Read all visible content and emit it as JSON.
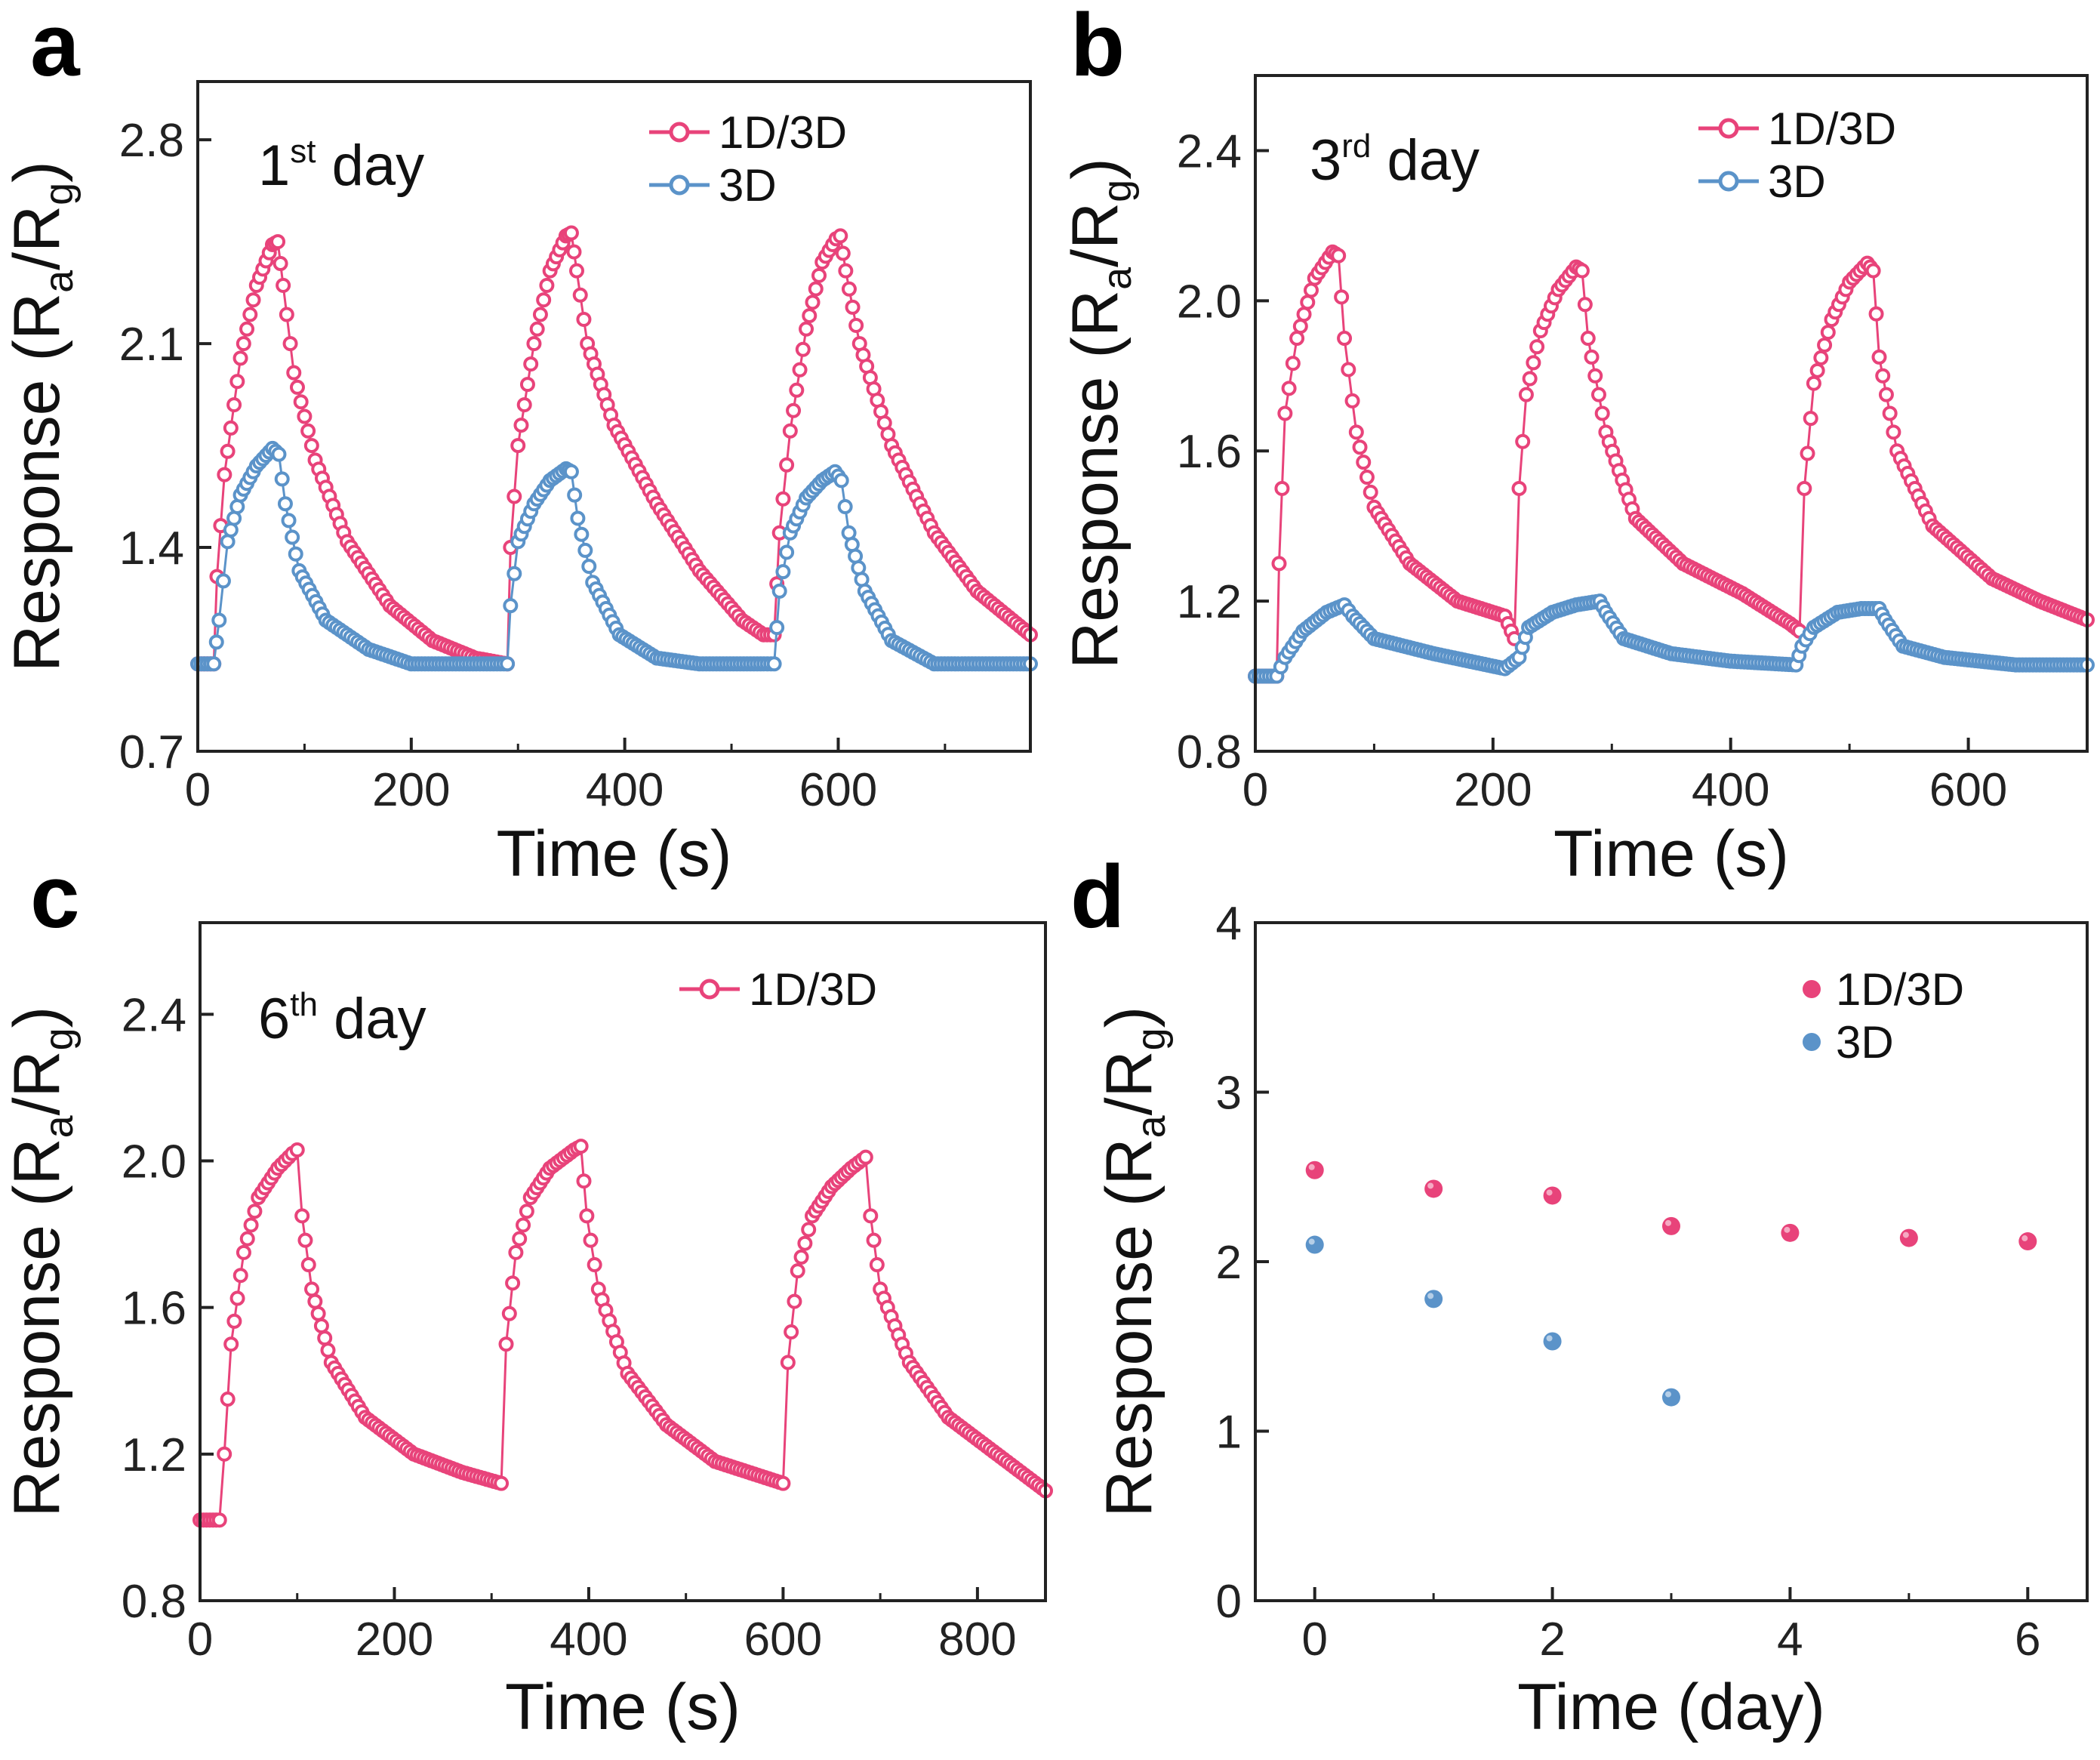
{
  "colors": {
    "series_1d3d": "#e8437a",
    "series_3d": "#5b93c9",
    "axis": "#222222"
  },
  "chart_data": [
    {
      "panel": "a",
      "type": "line",
      "annotation": {
        "main": "1",
        "sup": "st",
        "rest": " day"
      },
      "xlabel": "Time (s)",
      "ylabel": {
        "main": "Response (R",
        "sub_a": "a",
        "mid": "/R",
        "sub_g": "g",
        "end": ")"
      },
      "xlim": [
        0,
        780
      ],
      "ylim": [
        0.7,
        3.0
      ],
      "xticks": [
        0,
        200,
        400,
        600
      ],
      "xtick_labels": [
        "0",
        "200",
        "400",
        "600"
      ],
      "yticks": [
        0.7,
        1.4,
        2.1,
        2.8
      ],
      "ytick_labels": [
        "0.7",
        "1.4",
        "2.1",
        "2.8"
      ],
      "series": [
        {
          "name": "1D/3D",
          "color": "#e8437a",
          "points": [
            [
              0,
              1.0
            ],
            [
              15,
              1.0
            ],
            [
              18,
              1.3
            ],
            [
              25,
              1.65
            ],
            [
              40,
              2.05
            ],
            [
              55,
              2.3
            ],
            [
              70,
              2.44
            ],
            [
              75,
              2.45
            ],
            [
              80,
              2.3
            ],
            [
              90,
              2.0
            ],
            [
              110,
              1.7
            ],
            [
              140,
              1.42
            ],
            [
              180,
              1.2
            ],
            [
              220,
              1.08
            ],
            [
              260,
              1.02
            ],
            [
              290,
              1.0
            ],
            [
              293,
              1.4
            ],
            [
              300,
              1.75
            ],
            [
              315,
              2.1
            ],
            [
              330,
              2.35
            ],
            [
              345,
              2.47
            ],
            [
              350,
              2.48
            ],
            [
              355,
              2.35
            ],
            [
              365,
              2.1
            ],
            [
              390,
              1.82
            ],
            [
              430,
              1.55
            ],
            [
              470,
              1.32
            ],
            [
              510,
              1.15
            ],
            [
              530,
              1.1
            ],
            [
              540,
              1.1
            ],
            [
              545,
              1.45
            ],
            [
              555,
              1.8
            ],
            [
              570,
              2.15
            ],
            [
              585,
              2.38
            ],
            [
              598,
              2.46
            ],
            [
              602,
              2.47
            ],
            [
              607,
              2.35
            ],
            [
              620,
              2.1
            ],
            [
              650,
              1.75
            ],
            [
              690,
              1.45
            ],
            [
              730,
              1.25
            ],
            [
              780,
              1.1
            ]
          ]
        },
        {
          "name": "3D",
          "color": "#5b93c9",
          "points": [
            [
              0,
              1.0
            ],
            [
              15,
              1.0
            ],
            [
              20,
              1.15
            ],
            [
              28,
              1.42
            ],
            [
              40,
              1.58
            ],
            [
              55,
              1.68
            ],
            [
              70,
              1.74
            ],
            [
              76,
              1.72
            ],
            [
              82,
              1.55
            ],
            [
              95,
              1.32
            ],
            [
              120,
              1.15
            ],
            [
              160,
              1.05
            ],
            [
              200,
              1.0
            ],
            [
              290,
              1.0
            ],
            [
              293,
              1.2
            ],
            [
              300,
              1.42
            ],
            [
              315,
              1.55
            ],
            [
              330,
              1.63
            ],
            [
              345,
              1.67
            ],
            [
              350,
              1.66
            ],
            [
              356,
              1.5
            ],
            [
              370,
              1.28
            ],
            [
              395,
              1.1
            ],
            [
              430,
              1.02
            ],
            [
              470,
              1.0
            ],
            [
              540,
              1.0
            ],
            [
              545,
              1.25
            ],
            [
              555,
              1.45
            ],
            [
              570,
              1.57
            ],
            [
              585,
              1.63
            ],
            [
              597,
              1.66
            ],
            [
              603,
              1.63
            ],
            [
              610,
              1.45
            ],
            [
              625,
              1.25
            ],
            [
              650,
              1.08
            ],
            [
              690,
              1.0
            ],
            [
              780,
              1.0
            ]
          ]
        }
      ]
    },
    {
      "panel": "b",
      "type": "line",
      "annotation": {
        "main": "3",
        "sup": "rd",
        "rest": " day"
      },
      "xlabel": "Time (s)",
      "ylabel": {
        "main": "Response (R",
        "sub_a": "a",
        "mid": "/R",
        "sub_g": "g",
        "end": ")"
      },
      "xlim": [
        0,
        700
      ],
      "ylim": [
        0.8,
        2.6
      ],
      "xticks": [
        0,
        200,
        400,
        600
      ],
      "xtick_labels": [
        "0",
        "200",
        "400",
        "600"
      ],
      "yticks": [
        0.8,
        1.2,
        1.6,
        2.0,
        2.4
      ],
      "ytick_labels": [
        "0.8",
        "1.2",
        "1.6",
        "2.0",
        "2.4"
      ],
      "series": [
        {
          "name": "1D/3D",
          "color": "#e8437a",
          "points": [
            [
              0,
              1.0
            ],
            [
              18,
              1.0
            ],
            [
              20,
              1.3
            ],
            [
              25,
              1.7
            ],
            [
              35,
              1.9
            ],
            [
              50,
              2.06
            ],
            [
              65,
              2.13
            ],
            [
              70,
              2.12
            ],
            [
              75,
              1.9
            ],
            [
              85,
              1.65
            ],
            [
              100,
              1.45
            ],
            [
              130,
              1.3
            ],
            [
              170,
              1.2
            ],
            [
              210,
              1.16
            ],
            [
              218,
              1.1
            ],
            [
              222,
              1.5
            ],
            [
              228,
              1.75
            ],
            [
              240,
              1.92
            ],
            [
              255,
              2.03
            ],
            [
              270,
              2.09
            ],
            [
              275,
              2.08
            ],
            [
              280,
              1.9
            ],
            [
              295,
              1.65
            ],
            [
              320,
              1.42
            ],
            [
              360,
              1.3
            ],
            [
              410,
              1.22
            ],
            [
              450,
              1.14
            ],
            [
              458,
              1.12
            ],
            [
              462,
              1.5
            ],
            [
              470,
              1.78
            ],
            [
              485,
              1.95
            ],
            [
              500,
              2.05
            ],
            [
              515,
              2.1
            ],
            [
              520,
              2.08
            ],
            [
              525,
              1.85
            ],
            [
              540,
              1.6
            ],
            [
              570,
              1.4
            ],
            [
              620,
              1.26
            ],
            [
              660,
              1.2
            ],
            [
              700,
              1.15
            ]
          ]
        },
        {
          "name": "3D",
          "color": "#5b93c9",
          "points": [
            [
              0,
              1.0
            ],
            [
              18,
              1.0
            ],
            [
              25,
              1.05
            ],
            [
              40,
              1.12
            ],
            [
              60,
              1.17
            ],
            [
              75,
              1.19
            ],
            [
              82,
              1.16
            ],
            [
              100,
              1.1
            ],
            [
              150,
              1.06
            ],
            [
              210,
              1.02
            ],
            [
              222,
              1.05
            ],
            [
              230,
              1.13
            ],
            [
              250,
              1.17
            ],
            [
              270,
              1.19
            ],
            [
              290,
              1.2
            ],
            [
              295,
              1.17
            ],
            [
              310,
              1.1
            ],
            [
              350,
              1.06
            ],
            [
              400,
              1.04
            ],
            [
              455,
              1.03
            ],
            [
              460,
              1.08
            ],
            [
              470,
              1.13
            ],
            [
              490,
              1.17
            ],
            [
              510,
              1.18
            ],
            [
              525,
              1.18
            ],
            [
              530,
              1.15
            ],
            [
              545,
              1.08
            ],
            [
              580,
              1.05
            ],
            [
              640,
              1.03
            ],
            [
              700,
              1.03
            ]
          ]
        }
      ]
    },
    {
      "panel": "c",
      "type": "line",
      "annotation": {
        "main": "6",
        "sup": "th",
        "rest": " day"
      },
      "xlabel": "Time (s)",
      "ylabel": {
        "main": "Response (R",
        "sub_a": "a",
        "mid": "/R",
        "sub_g": "g",
        "end": ")"
      },
      "xlim": [
        0,
        870
      ],
      "ylim": [
        0.8,
        2.65
      ],
      "xticks": [
        0,
        200,
        400,
        600,
        800
      ],
      "xtick_labels": [
        "0",
        "200",
        "400",
        "600",
        "800"
      ],
      "yticks": [
        0.8,
        1.2,
        1.6,
        2.0,
        2.4
      ],
      "ytick_labels": [
        "0.8",
        "1.2",
        "1.6",
        "2.0",
        "2.4"
      ],
      "series": [
        {
          "name": "1D/3D",
          "color": "#e8437a",
          "points": [
            [
              0,
              1.02
            ],
            [
              20,
              1.02
            ],
            [
              25,
              1.2
            ],
            [
              32,
              1.5
            ],
            [
              45,
              1.75
            ],
            [
              60,
              1.9
            ],
            [
              80,
              1.98
            ],
            [
              95,
              2.02
            ],
            [
              100,
              2.03
            ],
            [
              105,
              1.85
            ],
            [
              115,
              1.65
            ],
            [
              135,
              1.45
            ],
            [
              170,
              1.3
            ],
            [
              220,
              1.2
            ],
            [
              270,
              1.15
            ],
            [
              310,
              1.12
            ],
            [
              315,
              1.5
            ],
            [
              325,
              1.75
            ],
            [
              340,
              1.9
            ],
            [
              360,
              1.98
            ],
            [
              385,
              2.03
            ],
            [
              392,
              2.04
            ],
            [
              398,
              1.85
            ],
            [
              410,
              1.65
            ],
            [
              440,
              1.42
            ],
            [
              480,
              1.28
            ],
            [
              530,
              1.18
            ],
            [
              600,
              1.12
            ],
            [
              605,
              1.45
            ],
            [
              615,
              1.7
            ],
            [
              630,
              1.85
            ],
            [
              650,
              1.93
            ],
            [
              670,
              1.98
            ],
            [
              685,
              2.01
            ],
            [
              690,
              1.85
            ],
            [
              700,
              1.65
            ],
            [
              730,
              1.45
            ],
            [
              770,
              1.3
            ],
            [
              820,
              1.2
            ],
            [
              870,
              1.1
            ]
          ]
        }
      ]
    },
    {
      "panel": "d",
      "type": "scatter",
      "xlabel": "Time (day)",
      "ylabel": {
        "main": "Response (R",
        "sub_a": "a",
        "mid": "/R",
        "sub_g": "g",
        "end": ")"
      },
      "xlim": [
        -0.5,
        6.5
      ],
      "ylim": [
        0,
        4
      ],
      "xticks": [
        0,
        2,
        4,
        6
      ],
      "xtick_labels": [
        "0",
        "2",
        "4",
        "6"
      ],
      "yticks": [
        0,
        1,
        2,
        3,
        4
      ],
      "ytick_labels": [
        "0",
        "1",
        "2",
        "3",
        "4"
      ],
      "series": [
        {
          "name": "1D/3D",
          "color": "#e8437a",
          "x": [
            0,
            1,
            2,
            3,
            4,
            5,
            6
          ],
          "y": [
            2.54,
            2.43,
            2.39,
            2.21,
            2.17,
            2.14,
            2.12
          ]
        },
        {
          "name": "3D",
          "color": "#5b93c9",
          "x": [
            0,
            1,
            2,
            3
          ],
          "y": [
            2.1,
            1.78,
            1.53,
            1.2
          ]
        }
      ]
    }
  ]
}
